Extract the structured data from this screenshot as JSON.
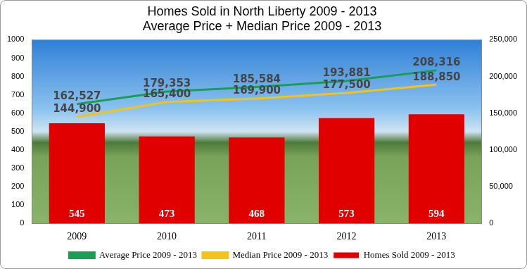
{
  "chart_data": {
    "type": "bar",
    "title": [
      "Homes Sold in North Liberty 2009 - 2013",
      "Average Price + Median Price 2009 - 2013"
    ],
    "categories": [
      "2009",
      "2010",
      "2011",
      "2012",
      "2013"
    ],
    "series": [
      {
        "name": "Homes Sold 2009 - 2013",
        "type": "bar",
        "color": "#e00000",
        "values": [
          545,
          473,
          468,
          573,
          594
        ]
      },
      {
        "name": "Average Price 2009 - 2013",
        "type": "line",
        "color": "#1a9e55",
        "axis": "y2",
        "values": [
          162527,
          179353,
          185584,
          193881,
          208316
        ],
        "value_labels": [
          "162,527",
          "179,353",
          "185,584",
          "193,881",
          "208,316"
        ]
      },
      {
        "name": "Median Price 2009 - 2013",
        "type": "line",
        "color": "#f2c318",
        "axis": "y2",
        "values": [
          144900,
          165400,
          169900,
          177500,
          188850
        ],
        "value_labels": [
          "144,900",
          "165,400",
          "169,900",
          "177,500",
          "188,850"
        ]
      }
    ],
    "ylim": [
      0,
      1000
    ],
    "yticks": [
      0,
      100,
      200,
      300,
      400,
      500,
      600,
      700,
      800,
      900,
      1000
    ],
    "y2lim": [
      0,
      250000
    ],
    "y2ticks": [
      0,
      {
        "value": 50000,
        "label": "50,000"
      },
      {
        "value": 100000,
        "label": "100,000"
      },
      {
        "value": 150000,
        "label": "150,000"
      },
      {
        "value": 200000,
        "label": "200,000"
      },
      {
        "value": 250000,
        "label": "250,000"
      }
    ],
    "grid": false,
    "legend": "bottom",
    "data_labels": true
  }
}
